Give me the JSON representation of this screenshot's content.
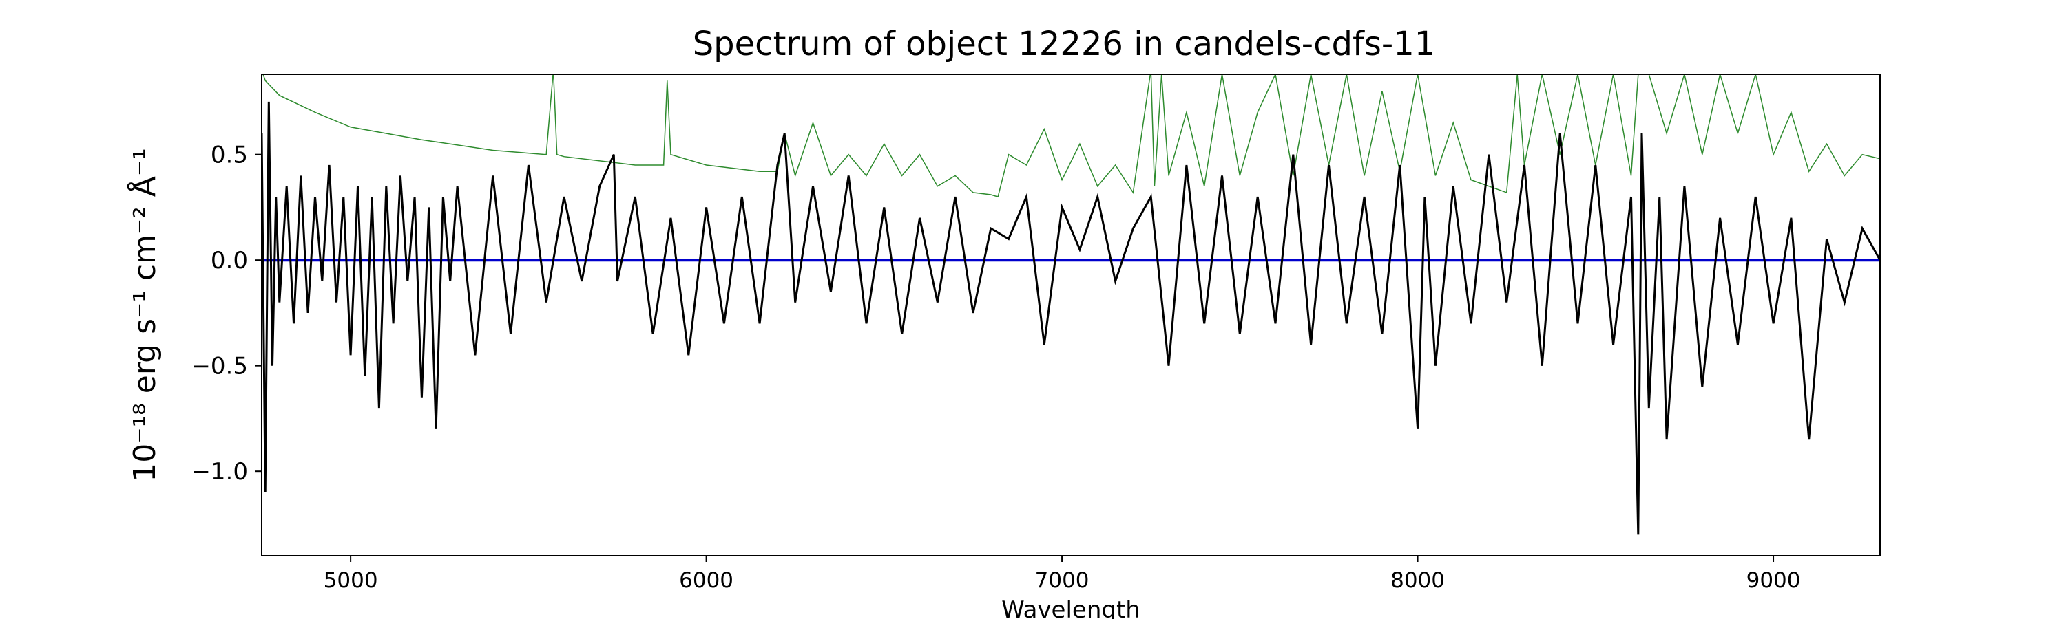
{
  "chart_data": {
    "type": "line",
    "title": "Spectrum of object 12226 in candels-cdfs-11",
    "xlabel": "Wavelength",
    "ylabel": "10⁻¹⁸ erg s⁻¹ cm⁻² Å⁻¹",
    "xlim": [
      4750,
      9300
    ],
    "ylim": [
      -1.4,
      0.88
    ],
    "x_ticks": [
      5000,
      6000,
      7000,
      8000,
      9000
    ],
    "y_ticks": [
      0.5,
      0.0,
      -0.5,
      -1.0
    ],
    "y_tick_labels": [
      "0.5",
      "0.0",
      "−0.5",
      "−1.0"
    ],
    "grid": false,
    "series": [
      {
        "role": "flux",
        "color": "#000000",
        "x": [
          4750,
          4760,
          4770,
          4780,
          4790,
          4800,
          4820,
          4840,
          4860,
          4880,
          4900,
          4920,
          4940,
          4960,
          4980,
          5000,
          5020,
          5040,
          5060,
          5080,
          5100,
          5120,
          5140,
          5160,
          5180,
          5200,
          5220,
          5240,
          5260,
          5280,
          5300,
          5350,
          5400,
          5450,
          5500,
          5550,
          5600,
          5650,
          5700,
          5740,
          5750,
          5800,
          5850,
          5900,
          5950,
          6000,
          6050,
          6100,
          6150,
          6200,
          6220,
          6250,
          6300,
          6350,
          6400,
          6450,
          6500,
          6550,
          6600,
          6650,
          6700,
          6750,
          6800,
          6850,
          6900,
          6950,
          7000,
          7050,
          7100,
          7150,
          7200,
          7250,
          7300,
          7350,
          7400,
          7450,
          7500,
          7550,
          7600,
          7650,
          7700,
          7750,
          7800,
          7850,
          7900,
          7950,
          8000,
          8020,
          8050,
          8100,
          8150,
          8200,
          8250,
          8300,
          8350,
          8400,
          8450,
          8500,
          8550,
          8600,
          8620,
          8630,
          8650,
          8680,
          8700,
          8750,
          8800,
          8850,
          8900,
          8950,
          9000,
          9050,
          9100,
          9150,
          9200,
          9250,
          9300
        ],
        "y": [
          0.6,
          -1.1,
          0.75,
          -0.5,
          0.3,
          -0.2,
          0.35,
          -0.3,
          0.4,
          -0.25,
          0.3,
          -0.1,
          0.45,
          -0.2,
          0.3,
          -0.45,
          0.35,
          -0.55,
          0.3,
          -0.7,
          0.35,
          -0.3,
          0.4,
          -0.1,
          0.3,
          -0.65,
          0.25,
          -0.8,
          0.3,
          -0.1,
          0.35,
          -0.45,
          0.4,
          -0.35,
          0.45,
          -0.2,
          0.3,
          -0.1,
          0.35,
          0.5,
          -0.1,
          0.3,
          -0.35,
          0.2,
          -0.45,
          0.25,
          -0.3,
          0.3,
          -0.3,
          0.45,
          0.6,
          -0.2,
          0.35,
          -0.15,
          0.4,
          -0.3,
          0.25,
          -0.35,
          0.2,
          -0.2,
          0.3,
          -0.25,
          0.15,
          0.1,
          0.3,
          -0.4,
          0.25,
          0.05,
          0.3,
          -0.1,
          0.15,
          0.3,
          -0.5,
          0.45,
          -0.3,
          0.4,
          -0.35,
          0.3,
          -0.3,
          0.5,
          -0.4,
          0.45,
          -0.3,
          0.3,
          -0.35,
          0.45,
          -0.8,
          0.3,
          -0.5,
          0.35,
          -0.3,
          0.5,
          -0.2,
          0.45,
          -0.5,
          0.6,
          -0.3,
          0.45,
          -0.4,
          0.3,
          -1.3,
          0.6,
          -0.7,
          0.3,
          -0.85,
          0.35,
          -0.6,
          0.2,
          -0.4,
          0.3,
          -0.3,
          0.2,
          -0.85,
          0.1,
          -0.2,
          0.15,
          0.0
        ]
      },
      {
        "role": "error",
        "color": "#2e8b2e",
        "x": [
          4750,
          4760,
          4800,
          4900,
          5000,
          5200,
          5400,
          5550,
          5570,
          5580,
          5600,
          5800,
          5880,
          5890,
          5900,
          6000,
          6150,
          6200,
          6220,
          6250,
          6300,
          6350,
          6400,
          6450,
          6500,
          6550,
          6600,
          6650,
          6700,
          6750,
          6800,
          6820,
          6850,
          6900,
          6950,
          7000,
          7050,
          7100,
          7150,
          7200,
          7250,
          7260,
          7280,
          7300,
          7350,
          7400,
          7450,
          7500,
          7550,
          7600,
          7650,
          7700,
          7750,
          7800,
          7850,
          7900,
          7950,
          8000,
          8050,
          8100,
          8150,
          8200,
          8250,
          8280,
          8300,
          8350,
          8400,
          8450,
          8500,
          8550,
          8600,
          8620,
          8650,
          8700,
          8750,
          8800,
          8850,
          8900,
          8950,
          9000,
          9050,
          9100,
          9150,
          9200,
          9250,
          9300
        ],
        "y": [
          0.9,
          0.85,
          0.78,
          0.7,
          0.63,
          0.57,
          0.52,
          0.5,
          0.9,
          0.5,
          0.49,
          0.45,
          0.45,
          0.85,
          0.5,
          0.45,
          0.42,
          0.42,
          0.6,
          0.4,
          0.65,
          0.4,
          0.5,
          0.4,
          0.55,
          0.4,
          0.5,
          0.35,
          0.4,
          0.32,
          0.31,
          0.3,
          0.5,
          0.45,
          0.62,
          0.38,
          0.55,
          0.35,
          0.45,
          0.32,
          0.9,
          0.35,
          0.88,
          0.4,
          0.7,
          0.35,
          0.88,
          0.4,
          0.7,
          0.88,
          0.4,
          0.88,
          0.45,
          0.88,
          0.4,
          0.8,
          0.42,
          0.88,
          0.4,
          0.65,
          0.38,
          0.35,
          0.32,
          0.88,
          0.45,
          0.88,
          0.5,
          0.88,
          0.45,
          0.88,
          0.4,
          0.88,
          0.88,
          0.6,
          0.88,
          0.5,
          0.88,
          0.6,
          0.88,
          0.5,
          0.7,
          0.42,
          0.55,
          0.4,
          0.5,
          0.48
        ]
      },
      {
        "role": "zero",
        "color": "#0000cc",
        "x": [
          4750,
          9300
        ],
        "y": [
          0.0,
          0.0
        ]
      }
    ]
  }
}
